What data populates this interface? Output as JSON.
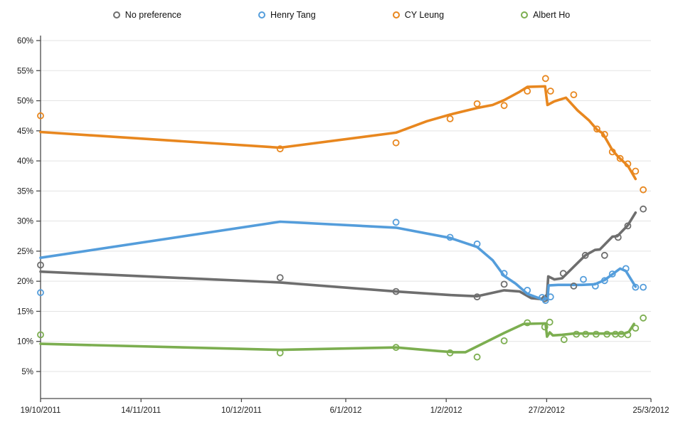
{
  "chart_data": {
    "type": "line",
    "title": "",
    "legend_position": "top",
    "x_axis": {
      "range_days": [
        0,
        158
      ],
      "ticks": [
        {
          "day": 0,
          "label": "19/10/2011"
        },
        {
          "day": 26,
          "label": "14/11/2011"
        },
        {
          "day": 52,
          "label": "10/12/2011"
        },
        {
          "day": 79,
          "label": "6/1/2012"
        },
        {
          "day": 105,
          "label": "1/2/2012"
        },
        {
          "day": 131,
          "label": "27/2/2012"
        },
        {
          "day": 158,
          "label": "25/3/2012"
        }
      ]
    },
    "y_axis": {
      "unit": "%",
      "ylim": [
        0.5,
        60
      ],
      "grid": true,
      "ticks": [
        {
          "value": 60,
          "label": "60%"
        },
        {
          "value": 55,
          "label": "55%"
        },
        {
          "value": 50,
          "label": "50%"
        },
        {
          "value": 45,
          "label": "45%"
        },
        {
          "value": 40,
          "label": "40%"
        },
        {
          "value": 35,
          "label": "35%"
        },
        {
          "value": 30,
          "label": "30%"
        },
        {
          "value": 25,
          "label": "25%"
        },
        {
          "value": 20,
          "label": "20%"
        },
        {
          "value": 15,
          "label": "15%"
        },
        {
          "value": 10,
          "label": "10%"
        },
        {
          "value": 5,
          "label": "5%"
        }
      ]
    },
    "series": [
      {
        "name": "No preference",
        "color": "#6e6e6e",
        "line": [
          [
            0,
            21.6
          ],
          [
            62,
            19.8
          ],
          [
            92,
            18.3
          ],
          [
            106,
            17.7
          ],
          [
            113,
            17.5
          ],
          [
            120,
            18.5
          ],
          [
            124,
            18.3
          ],
          [
            127,
            17.2
          ],
          [
            130,
            17.0
          ],
          [
            131.1,
            17.8
          ],
          [
            131.4,
            20.8
          ],
          [
            133,
            20.3
          ],
          [
            135,
            20.5
          ],
          [
            141,
            24.3
          ],
          [
            143.5,
            25.2
          ],
          [
            144.8,
            25.3
          ],
          [
            148,
            27.4
          ],
          [
            149.3,
            27.5
          ],
          [
            152,
            29.3
          ],
          [
            154,
            31.4
          ]
        ],
        "points": [
          [
            0,
            22.7
          ],
          [
            62,
            20.6
          ],
          [
            92,
            18.3
          ],
          [
            113,
            17.4
          ],
          [
            120,
            19.5
          ],
          [
            130.5,
            17.1
          ],
          [
            135.3,
            21.3
          ],
          [
            138,
            19.2
          ],
          [
            141,
            24.3
          ],
          [
            146,
            24.3
          ],
          [
            149.5,
            27.3
          ],
          [
            152,
            29.2
          ],
          [
            156,
            32.0
          ]
        ]
      },
      {
        "name": "Henry Tang",
        "color": "#549ddb",
        "line": [
          [
            0,
            23.9
          ],
          [
            62,
            29.9
          ],
          [
            92,
            28.9
          ],
          [
            106,
            27.2
          ],
          [
            113,
            25.7
          ],
          [
            117,
            23.5
          ],
          [
            120,
            20.9
          ],
          [
            123,
            19.6
          ],
          [
            126,
            17.9
          ],
          [
            129,
            17.2
          ],
          [
            131.2,
            16.9
          ],
          [
            131.5,
            19.3
          ],
          [
            134,
            19.4
          ],
          [
            140,
            19.4
          ],
          [
            143.5,
            19.5
          ],
          [
            146,
            20.2
          ],
          [
            150,
            22.1
          ],
          [
            151.5,
            21.7
          ],
          [
            154,
            19.1
          ]
        ],
        "points": [
          [
            0,
            18.1
          ],
          [
            92,
            29.8
          ],
          [
            106,
            27.3
          ],
          [
            113,
            26.2
          ],
          [
            120,
            21.3
          ],
          [
            126,
            18.5
          ],
          [
            129.8,
            17.3
          ],
          [
            130.7,
            16.8
          ],
          [
            132,
            17.4
          ],
          [
            140.5,
            20.3
          ],
          [
            143.6,
            19.2
          ],
          [
            146,
            20.1
          ],
          [
            148,
            21.2
          ],
          [
            151.5,
            22.1
          ],
          [
            154,
            19.0
          ],
          [
            156,
            19.0
          ]
        ]
      },
      {
        "name": "CY Leung",
        "color": "#e8871f",
        "line": [
          [
            0,
            44.8
          ],
          [
            62,
            42.2
          ],
          [
            92,
            44.7
          ],
          [
            100,
            46.6
          ],
          [
            106,
            47.7
          ],
          [
            113,
            48.8
          ],
          [
            117,
            49.3
          ],
          [
            120,
            50.1
          ],
          [
            124,
            51.5
          ],
          [
            126,
            52.3
          ],
          [
            130.6,
            52.4
          ],
          [
            131.2,
            49.3
          ],
          [
            133,
            49.9
          ],
          [
            136,
            50.5
          ],
          [
            139,
            48.4
          ],
          [
            142,
            46.7
          ],
          [
            144,
            45.2
          ],
          [
            145.5,
            44.6
          ],
          [
            148,
            41.8
          ],
          [
            149.5,
            40.7
          ],
          [
            152,
            39.2
          ],
          [
            154,
            37.0
          ]
        ],
        "points": [
          [
            0,
            47.5
          ],
          [
            62,
            42.0
          ],
          [
            92,
            43.0
          ],
          [
            106,
            47.0
          ],
          [
            113,
            49.5
          ],
          [
            120,
            49.2
          ],
          [
            126,
            51.6
          ],
          [
            130.7,
            53.7
          ],
          [
            132,
            51.6
          ],
          [
            138,
            51.0
          ],
          [
            144,
            45.3
          ],
          [
            146,
            44.4
          ],
          [
            148,
            41.5
          ],
          [
            150,
            40.4
          ],
          [
            152,
            39.5
          ],
          [
            154,
            38.3
          ],
          [
            156,
            35.2
          ]
        ]
      },
      {
        "name": "Albert Ho",
        "color": "#7cae50",
        "line": [
          [
            0,
            9.6
          ],
          [
            62,
            8.6
          ],
          [
            92,
            9.0
          ],
          [
            103,
            8.4
          ],
          [
            107,
            8.2
          ],
          [
            110,
            8.2
          ],
          [
            120,
            11.4
          ],
          [
            125,
            12.9
          ],
          [
            130.7,
            13.0
          ],
          [
            131.1,
            10.8
          ],
          [
            131.8,
            11.5
          ],
          [
            132.6,
            11.0
          ],
          [
            135,
            11.1
          ],
          [
            138,
            11.3
          ],
          [
            151,
            11.3
          ],
          [
            152.3,
            11.6
          ],
          [
            153.6,
            12.9
          ]
        ],
        "points": [
          [
            0,
            11.1
          ],
          [
            62,
            8.1
          ],
          [
            92,
            9.0
          ],
          [
            106,
            8.1
          ],
          [
            113,
            7.4
          ],
          [
            120,
            10.1
          ],
          [
            126,
            13.1
          ],
          [
            130.5,
            12.4
          ],
          [
            131.8,
            13.2
          ],
          [
            135.5,
            10.3
          ],
          [
            138.7,
            11.2
          ],
          [
            141.1,
            11.2
          ],
          [
            143.8,
            11.2
          ],
          [
            146.6,
            11.2
          ],
          [
            148.8,
            11.2
          ],
          [
            150.3,
            11.2
          ],
          [
            152,
            11.1
          ],
          [
            154,
            12.2
          ],
          [
            156,
            13.9
          ]
        ]
      }
    ]
  },
  "style": {
    "grid_color": "#e3e3e3",
    "axis_color": "#4a4a4a",
    "label_color": "#1c1c1c"
  }
}
